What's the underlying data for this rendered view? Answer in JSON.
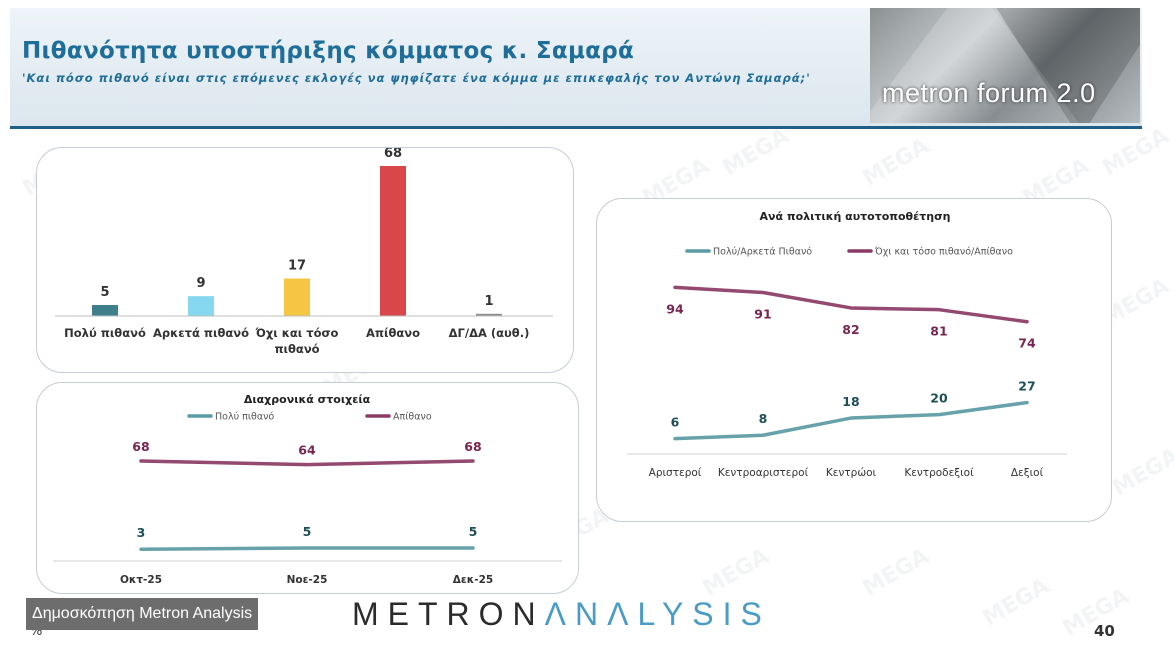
{
  "header": {
    "title": "Πιθανότητα υποστήριξης κόμματος κ. Σαμαρά",
    "subtitle": "'Και πόσο πιθανό είναι στις επόμενες εκλογές να ψηφίζατε ένα κόμμα με επικεφαλής τον Αντώνη Σαμαρά;'",
    "logo_text": "metron forum 2.0"
  },
  "watermark_text": "MEGA",
  "footer": {
    "badge": "Δημοσκόπηση Metron Analysis",
    "brand_part1": "METRON",
    "brand_part2": "ΛNΛLYSIS",
    "percent_sign": "%",
    "page_number": "40"
  },
  "colors": {
    "title_blue": "#1f6d99",
    "teal": "#5a9aa3",
    "maroon": "#8a3a64",
    "dark_teal": "#3f7f8c",
    "light_blue": "#86d7f0",
    "yellow": "#f5c543",
    "red": "#d9474a",
    "gray": "#8c8c8c"
  },
  "chart_data": [
    {
      "type": "bar",
      "title": "",
      "categories": [
        "Πολύ πιθανό",
        "Αρκετά πιθανό",
        "Όχι και τόσο πιθανό",
        "Απίθανο",
        "ΔΓ/ΔΑ (αυθ.)"
      ],
      "category_lines": [
        [
          "Πολύ πιθανό"
        ],
        [
          "Αρκετά πιθανό"
        ],
        [
          "Όχι και τόσο",
          "πιθανό"
        ],
        [
          "Απίθανο"
        ],
        [
          "ΔΓ/ΔΑ (αυθ.)"
        ]
      ],
      "values": [
        5,
        9,
        17,
        68,
        1
      ],
      "bar_colors": [
        "#3f7f8c",
        "#86d7f0",
        "#f5c543",
        "#d9474a",
        "#8c8c8c"
      ],
      "ylim": [
        0,
        68
      ]
    },
    {
      "type": "line",
      "title": "Διαχρονικά στοιχεία",
      "x": [
        "Οκτ-25",
        "Νοε-25",
        "Δεκ-25"
      ],
      "series": [
        {
          "name": "Πολύ πιθανό",
          "values": [
            3,
            5,
            5
          ],
          "color": "#5a9aa3"
        },
        {
          "name": "Απίθανο",
          "values": [
            68,
            64,
            68
          ],
          "color": "#8a3a64"
        }
      ]
    },
    {
      "type": "line",
      "title": "Ανά πολιτική αυτοτοποθέτηση",
      "x": [
        "Αριστεροί",
        "Κεντροαριστεροί",
        "Κεντρώοι",
        "Κεντροδεξιοί",
        "Δεξιοί"
      ],
      "series": [
        {
          "name": "Πολύ/Αρκετά Πιθανό",
          "values": [
            6,
            8,
            18,
            20,
            27
          ],
          "color": "#5a9aa3"
        },
        {
          "name": "Όχι και τόσο πιθανό/Απίθανο",
          "values": [
            94,
            91,
            82,
            81,
            74
          ],
          "color": "#8a3a64"
        }
      ],
      "ylim": [
        0,
        100
      ]
    }
  ]
}
